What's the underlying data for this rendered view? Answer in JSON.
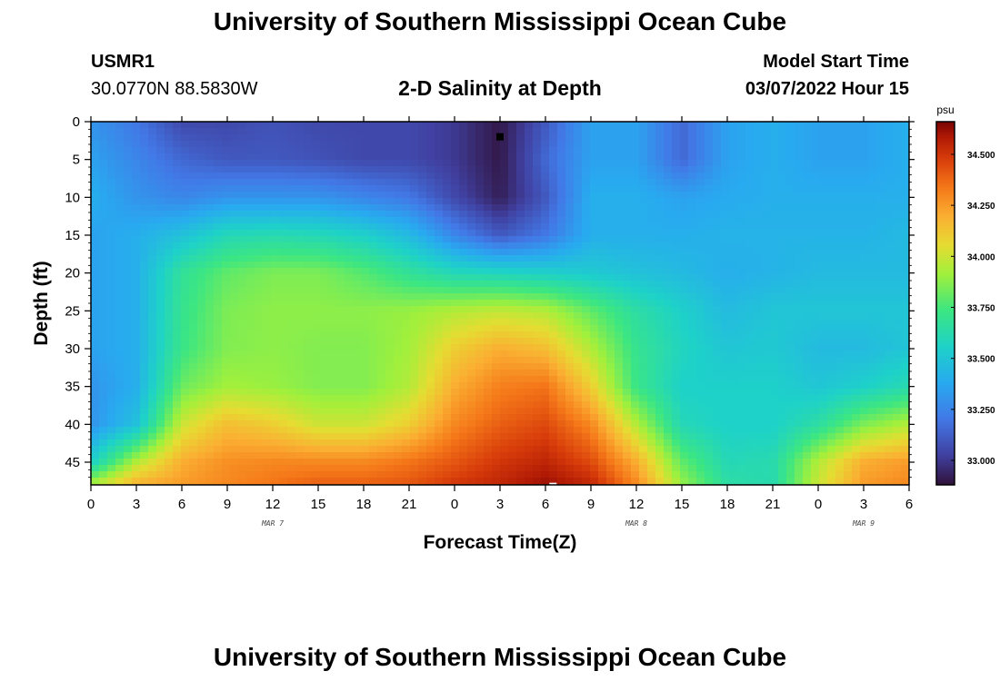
{
  "page": {
    "title": "University of Southern Mississippi Ocean Cube",
    "station": "USMR1",
    "coords": "30.0770N  88.5830W",
    "subtitle": "2-D Salinity at Depth",
    "model_label": "Model Start Time",
    "model_time": "03/07/2022 Hour 15",
    "footer_title": "University of Southern Mississippi Ocean Cube"
  },
  "chart_data": {
    "type": "heatmap",
    "title": "2-D Salinity at Depth",
    "xlabel": "Forecast Time(Z)",
    "ylabel": "Depth (ft)",
    "x_tick_labels": [
      "0",
      "3",
      "6",
      "9",
      "12",
      "15",
      "18",
      "21",
      "0",
      "3",
      "6",
      "9",
      "12",
      "15",
      "18",
      "21",
      "0",
      "3",
      "6"
    ],
    "x_date_labels": [
      {
        "label": "MAR 7",
        "at_hours": 12
      },
      {
        "label": "MAR 8",
        "at_hours": 36
      },
      {
        "label": "MAR 9",
        "at_hours": 51
      }
    ],
    "xlim_hours": [
      0,
      54
    ],
    "y_ticks": [
      0,
      5,
      10,
      15,
      20,
      25,
      30,
      35,
      40,
      45
    ],
    "ylim": [
      0,
      48
    ],
    "y_inverted": true,
    "colorbar": {
      "unit": "psu",
      "ticks": [
        "33.000",
        "33.250",
        "33.500",
        "33.750",
        "34.000",
        "34.250",
        "34.500"
      ],
      "range": [
        32.88,
        34.66
      ]
    },
    "grid_depth_ft": [
      0,
      5,
      10,
      15,
      20,
      25,
      30,
      35,
      40,
      45,
      48
    ],
    "grid_time_hours": [
      0,
      3,
      6,
      9,
      12,
      15,
      18,
      21,
      24,
      27,
      30,
      33,
      36,
      39,
      42,
      45,
      48,
      51,
      54
    ],
    "salinity_psu": [
      [
        33.3,
        33.2,
        33.05,
        33.05,
        33.08,
        33.05,
        33.05,
        33.05,
        33.0,
        32.9,
        33.1,
        33.35,
        33.35,
        33.15,
        33.35,
        33.4,
        33.35,
        33.35,
        33.4
      ],
      [
        33.35,
        33.25,
        33.15,
        33.1,
        33.1,
        33.08,
        33.05,
        33.05,
        33.0,
        32.9,
        33.15,
        33.35,
        33.35,
        33.15,
        33.35,
        33.4,
        33.35,
        33.35,
        33.4
      ],
      [
        33.4,
        33.3,
        33.25,
        33.3,
        33.3,
        33.3,
        33.25,
        33.2,
        33.05,
        32.92,
        33.1,
        33.4,
        33.4,
        33.35,
        33.38,
        33.4,
        33.4,
        33.4,
        33.4
      ],
      [
        33.35,
        33.4,
        33.48,
        33.6,
        33.62,
        33.6,
        33.55,
        33.45,
        33.25,
        33.1,
        33.2,
        33.4,
        33.4,
        33.4,
        33.42,
        33.42,
        33.42,
        33.42,
        33.45
      ],
      [
        33.35,
        33.4,
        33.68,
        33.8,
        33.85,
        33.85,
        33.78,
        33.68,
        33.6,
        33.58,
        33.55,
        33.52,
        33.48,
        33.45,
        33.4,
        33.42,
        33.45,
        33.45,
        33.45
      ],
      [
        33.35,
        33.4,
        33.7,
        33.85,
        33.88,
        33.88,
        33.88,
        33.9,
        33.95,
        33.98,
        33.95,
        33.8,
        33.65,
        33.55,
        33.45,
        33.5,
        33.5,
        33.5,
        33.5
      ],
      [
        33.35,
        33.4,
        33.72,
        33.86,
        33.88,
        33.86,
        33.86,
        33.92,
        34.1,
        34.2,
        34.15,
        33.95,
        33.7,
        33.58,
        33.5,
        33.52,
        33.45,
        33.45,
        33.5
      ],
      [
        33.3,
        33.4,
        33.82,
        33.92,
        33.9,
        33.86,
        33.86,
        33.95,
        34.2,
        34.32,
        34.35,
        34.1,
        33.72,
        33.55,
        33.55,
        33.55,
        33.5,
        33.55,
        33.62
      ],
      [
        33.3,
        33.48,
        34.0,
        34.15,
        34.1,
        34.0,
        34.0,
        34.1,
        34.3,
        34.4,
        34.45,
        34.3,
        33.95,
        33.6,
        33.55,
        33.55,
        33.65,
        33.85,
        33.95
      ],
      [
        33.55,
        33.95,
        34.2,
        34.28,
        34.3,
        34.3,
        34.3,
        34.35,
        34.42,
        34.5,
        34.55,
        34.45,
        34.2,
        33.8,
        33.6,
        33.62,
        33.95,
        34.2,
        34.25
      ],
      [
        33.95,
        34.2,
        34.25,
        34.3,
        34.35,
        34.4,
        34.4,
        34.42,
        34.5,
        34.55,
        34.62,
        34.55,
        34.3,
        33.9,
        33.65,
        33.62,
        34.0,
        34.25,
        34.3
      ]
    ],
    "markers": [
      {
        "type": "black-square",
        "time_hours": 27,
        "depth_ft": 2
      },
      {
        "type": "white-dash",
        "time_hours": 30.5,
        "depth_ft": 47.9
      }
    ]
  }
}
